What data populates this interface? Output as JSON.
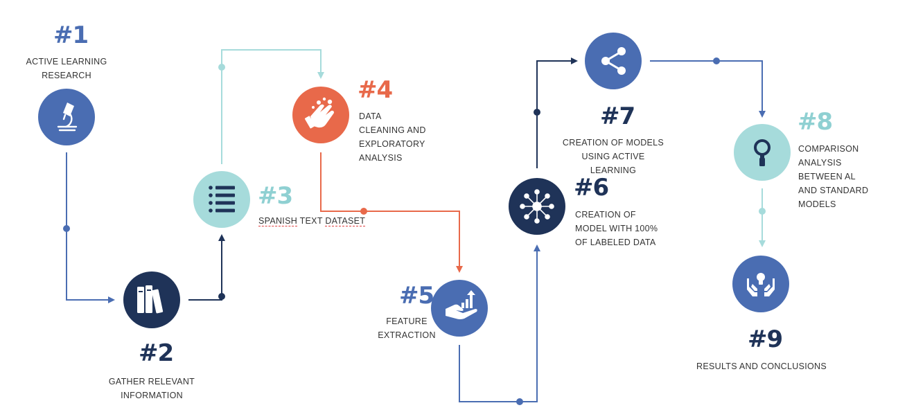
{
  "colors": {
    "blue": "#4a6db2",
    "navy": "#1f3358",
    "teal": "#a6dbdb",
    "orange": "#e8694a",
    "tealNum": "#8fd0d2"
  },
  "steps": [
    {
      "number": "#1",
      "label": "ACTIVE LEARNING\nRESEARCH",
      "icon": "microscope-icon"
    },
    {
      "number": "#2",
      "label": "GATHER RELEVANT\nINFORMATION",
      "icon": "books-icon"
    },
    {
      "number": "#3",
      "label_parts": [
        "SPANISH",
        " TEXT ",
        "DATASET"
      ],
      "icon": "list-icon"
    },
    {
      "number": "#4",
      "label": "DATA\nCLEANING AND\nEXPLORATORY\nANALYSIS",
      "icon": "washing-hands-icon"
    },
    {
      "number": "#5",
      "label": "FEATURE\nEXTRACTION",
      "icon": "hand-growth-chart-icon"
    },
    {
      "number": "#6",
      "label": "CREATION OF\nMODEL WITH 100%\nOF LABELED DATA",
      "icon": "network-hub-icon"
    },
    {
      "number": "#7",
      "label": "CREATION OF MODELS\nUSING ACTIVE\nLEARNING",
      "icon": "share-icon"
    },
    {
      "number": "#8",
      "label": "COMPARISON\nANALYSIS\nBETWEEN AL\nAND STANDARD\nMODELS",
      "icon": "magnifier-icon"
    },
    {
      "number": "#9",
      "label": "RESULTS AND CONCLUSIONS",
      "icon": "hands-lightbulb-icon"
    }
  ]
}
